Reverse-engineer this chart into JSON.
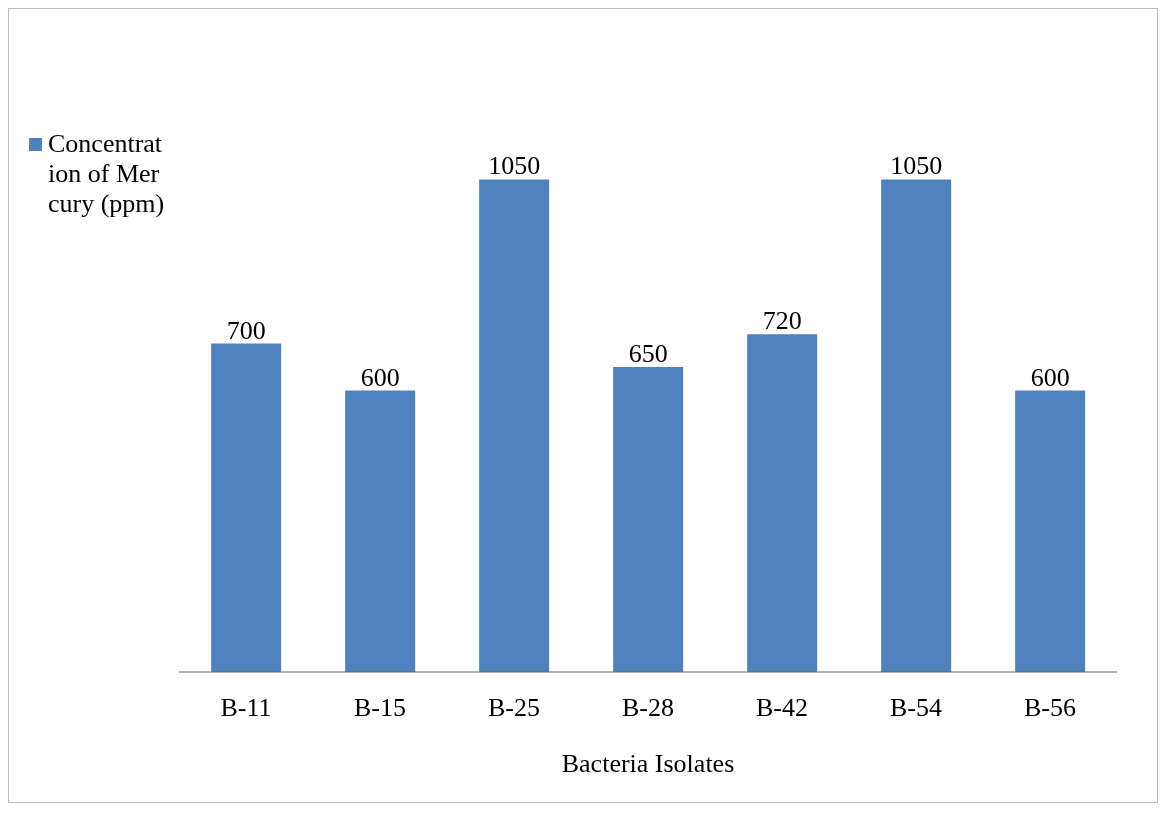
{
  "chart_data": {
    "type": "bar",
    "xlabel": "Bacteria Isolates",
    "categories": [
      "B-11",
      "B-15",
      "B-25",
      "B-28",
      "B-42",
      "B-54",
      "B-56"
    ],
    "series": [
      {
        "name": "Concentration of Mercury (ppm)",
        "color": "#4f81bd",
        "values": [
          700,
          600,
          1050,
          650,
          720,
          1050,
          600
        ]
      }
    ],
    "data_labels": true,
    "legend": "left",
    "grid": false
  }
}
